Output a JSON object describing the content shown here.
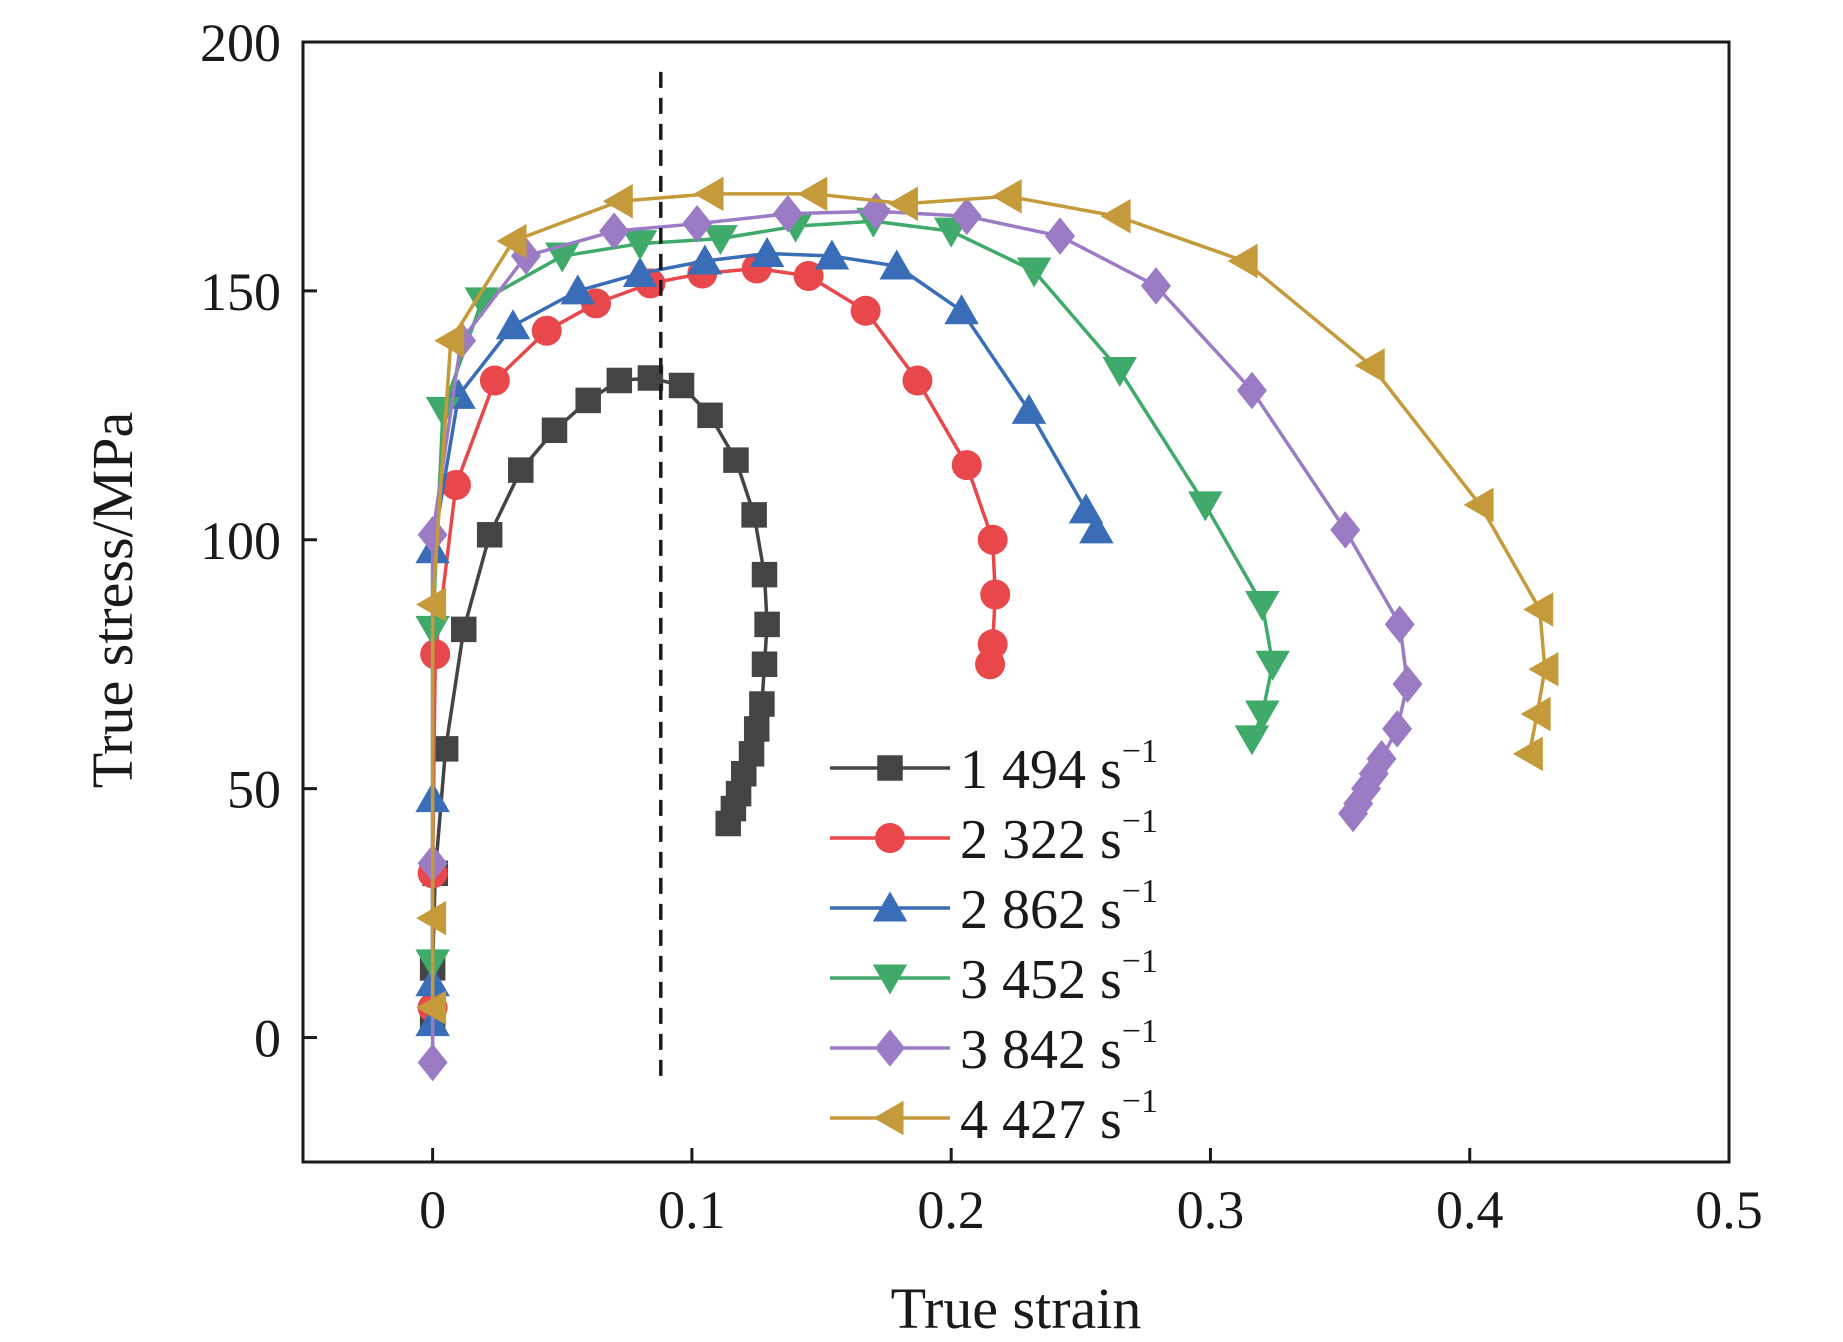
{
  "chart_data": {
    "type": "line",
    "title": "",
    "xlabel": "True strain",
    "ylabel": "True stress/MPa",
    "xlim": [
      -0.05,
      0.5
    ],
    "ylim": [
      -25,
      200
    ],
    "xticks": [
      0,
      0.1,
      0.2,
      0.3,
      0.4,
      0.5
    ],
    "xtick_labels": [
      "0",
      "0.1",
      "0.2",
      "0.3",
      "0.4",
      "0.5"
    ],
    "yticks": [
      0,
      50,
      100,
      150,
      200
    ],
    "ytick_labels": [
      "0",
      "50",
      "100",
      "150",
      "200"
    ],
    "grid": false,
    "legend_position": "bottom-right",
    "reference_line": {
      "style": "dashed",
      "x": 0.088,
      "y_range": [
        -8,
        194
      ]
    },
    "series": [
      {
        "name": "1 494 s",
        "sup": "−1",
        "color": "#444444",
        "marker": "square",
        "x": [
          0.0,
          0.0,
          0.001,
          0.005,
          0.012,
          0.022,
          0.034,
          0.047,
          0.06,
          0.072,
          0.084,
          0.096,
          0.107,
          0.117,
          0.124,
          0.128,
          0.129,
          0.128,
          0.127,
          0.125,
          0.123,
          0.12,
          0.118,
          0.116,
          0.114
        ],
        "y": [
          3,
          14,
          33,
          58,
          82,
          101,
          114,
          122,
          128,
          132,
          132.5,
          131,
          125,
          116,
          105,
          93,
          83,
          75,
          67,
          62,
          57,
          53,
          49,
          46,
          43
        ]
      },
      {
        "name": "2 322 s",
        "sup": "−1",
        "color": "#e8474b",
        "marker": "circle",
        "x": [
          0.0,
          0.0,
          0.001,
          0.009,
          0.024,
          0.044,
          0.063,
          0.084,
          0.104,
          0.125,
          0.145,
          0.167,
          0.187,
          0.206,
          0.216,
          0.217,
          0.216,
          0.215
        ],
        "y": [
          6,
          33,
          77,
          111,
          132,
          142,
          147.5,
          151.5,
          153.5,
          154.5,
          153,
          146,
          132,
          115,
          100,
          89,
          79,
          75
        ]
      },
      {
        "name": "2 862 s",
        "sup": "−1",
        "color": "#3a6db8",
        "marker": "triangle-up",
        "x": [
          0.0,
          0.0,
          0.0,
          0.0,
          0.01,
          0.031,
          0.056,
          0.08,
          0.105,
          0.129,
          0.154,
          0.179,
          0.204,
          0.23,
          0.252,
          0.256
        ],
        "y": [
          3,
          11,
          48,
          98,
          129,
          143,
          150,
          153.5,
          156,
          157.5,
          157,
          155,
          146,
          126,
          106,
          102
        ]
      },
      {
        "name": "3 452 s",
        "sup": "−1",
        "color": "#3faa6a",
        "marker": "triangle-down",
        "x": [
          0.0,
          0.0,
          0.004,
          0.019,
          0.05,
          0.08,
          0.111,
          0.14,
          0.17,
          0.2,
          0.232,
          0.265,
          0.298,
          0.32,
          0.324,
          0.32,
          0.316
        ],
        "y": [
          15,
          82,
          126,
          148,
          157,
          159.5,
          160.5,
          163,
          164,
          162,
          154,
          134,
          107,
          87,
          75,
          65,
          60
        ]
      },
      {
        "name": "3 842 s",
        "sup": "−1",
        "color": "#9b7cc4",
        "marker": "diamond",
        "x": [
          0.0,
          0.0,
          0.0,
          0.011,
          0.036,
          0.07,
          0.102,
          0.137,
          0.171,
          0.206,
          0.242,
          0.279,
          0.316,
          0.352,
          0.373,
          0.376,
          0.372,
          0.366,
          0.363,
          0.36,
          0.357,
          0.355
        ],
        "y": [
          -5,
          35,
          101,
          140,
          157,
          162,
          163.5,
          165.5,
          166,
          165,
          161,
          151,
          130,
          102,
          83,
          71,
          62,
          56,
          53,
          50,
          47,
          45
        ]
      },
      {
        "name": "4 427 s",
        "sup": "−1",
        "color": "#c49a3a",
        "marker": "triangle-left",
        "x": [
          0.0,
          0.0,
          0.0,
          0.007,
          0.031,
          0.072,
          0.107,
          0.147,
          0.182,
          0.222,
          0.264,
          0.313,
          0.362,
          0.404,
          0.427,
          0.429,
          0.426,
          0.423
        ],
        "y": [
          6,
          24,
          87,
          140,
          160,
          168,
          169.5,
          169.5,
          167.5,
          169,
          165,
          156,
          135,
          107,
          86,
          74,
          65,
          57
        ]
      }
    ]
  }
}
